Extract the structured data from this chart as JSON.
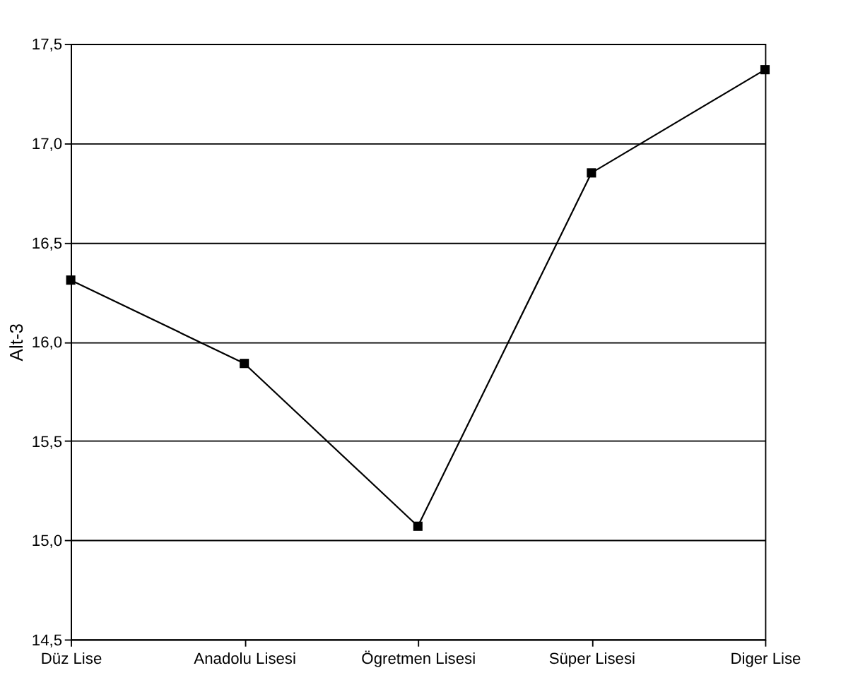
{
  "chart_data": {
    "type": "line",
    "ylabel": "Alt-3",
    "categories": [
      "Düz Lise",
      "Anadolu Lisesi",
      "Ögretmen Lisesi",
      "Süper Lisesi",
      "Diger Lise"
    ],
    "series": [
      {
        "color": "#000000",
        "values": [
          16.31,
          15.89,
          15.07,
          16.85,
          17.37
        ]
      }
    ],
    "ylim": [
      14.5,
      17.5
    ],
    "yticks": [
      {
        "value": 14.5,
        "label": "14,5"
      },
      {
        "value": 15.0,
        "label": "15,0"
      },
      {
        "value": 15.5,
        "label": "15,5"
      },
      {
        "value": 16.0,
        "label": "16,0"
      },
      {
        "value": 16.5,
        "label": "16,5"
      },
      {
        "value": 17.0,
        "label": "17,0"
      },
      {
        "value": 17.5,
        "label": "17,5"
      }
    ],
    "grid": "y",
    "marker": "square",
    "line_style": "solid"
  }
}
